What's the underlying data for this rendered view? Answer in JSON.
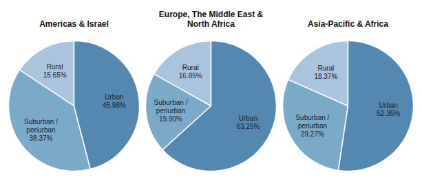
{
  "chart_data": [
    {
      "type": "pie",
      "title": "Americas & Israel",
      "categories": [
        "Rural",
        "Suburban /\nperiurban",
        "Urban"
      ],
      "values": [
        15.65,
        38.37,
        45.98
      ],
      "value_labels": [
        "15.65%",
        "38.37%",
        "45.98%"
      ],
      "colors": [
        "#aac4de",
        "#7aaac8",
        "#5588b0"
      ],
      "data_labels": true
    },
    {
      "type": "pie",
      "title": "Europe, The Middle East &\nNorth Africa",
      "categories": [
        "Rural",
        "Suburban /\nperiurban",
        "Urban"
      ],
      "values": [
        16.85,
        19.9,
        63.25
      ],
      "value_labels": [
        "16.85%",
        "19.90%",
        "63.25%"
      ],
      "colors": [
        "#aac4de",
        "#7aaac8",
        "#5588b0"
      ],
      "data_labels": true
    },
    {
      "type": "pie",
      "title": "Asia-Pacific & Africa",
      "categories": [
        "Rural",
        "Suburban /\nperiurban",
        "Urban"
      ],
      "values": [
        18.37,
        29.27,
        52.35
      ],
      "value_labels": [
        "18.37%",
        "29.27%",
        "52.35%"
      ],
      "colors": [
        "#aac4de",
        "#7aaac8",
        "#5588b0"
      ],
      "data_labels": true
    }
  ]
}
